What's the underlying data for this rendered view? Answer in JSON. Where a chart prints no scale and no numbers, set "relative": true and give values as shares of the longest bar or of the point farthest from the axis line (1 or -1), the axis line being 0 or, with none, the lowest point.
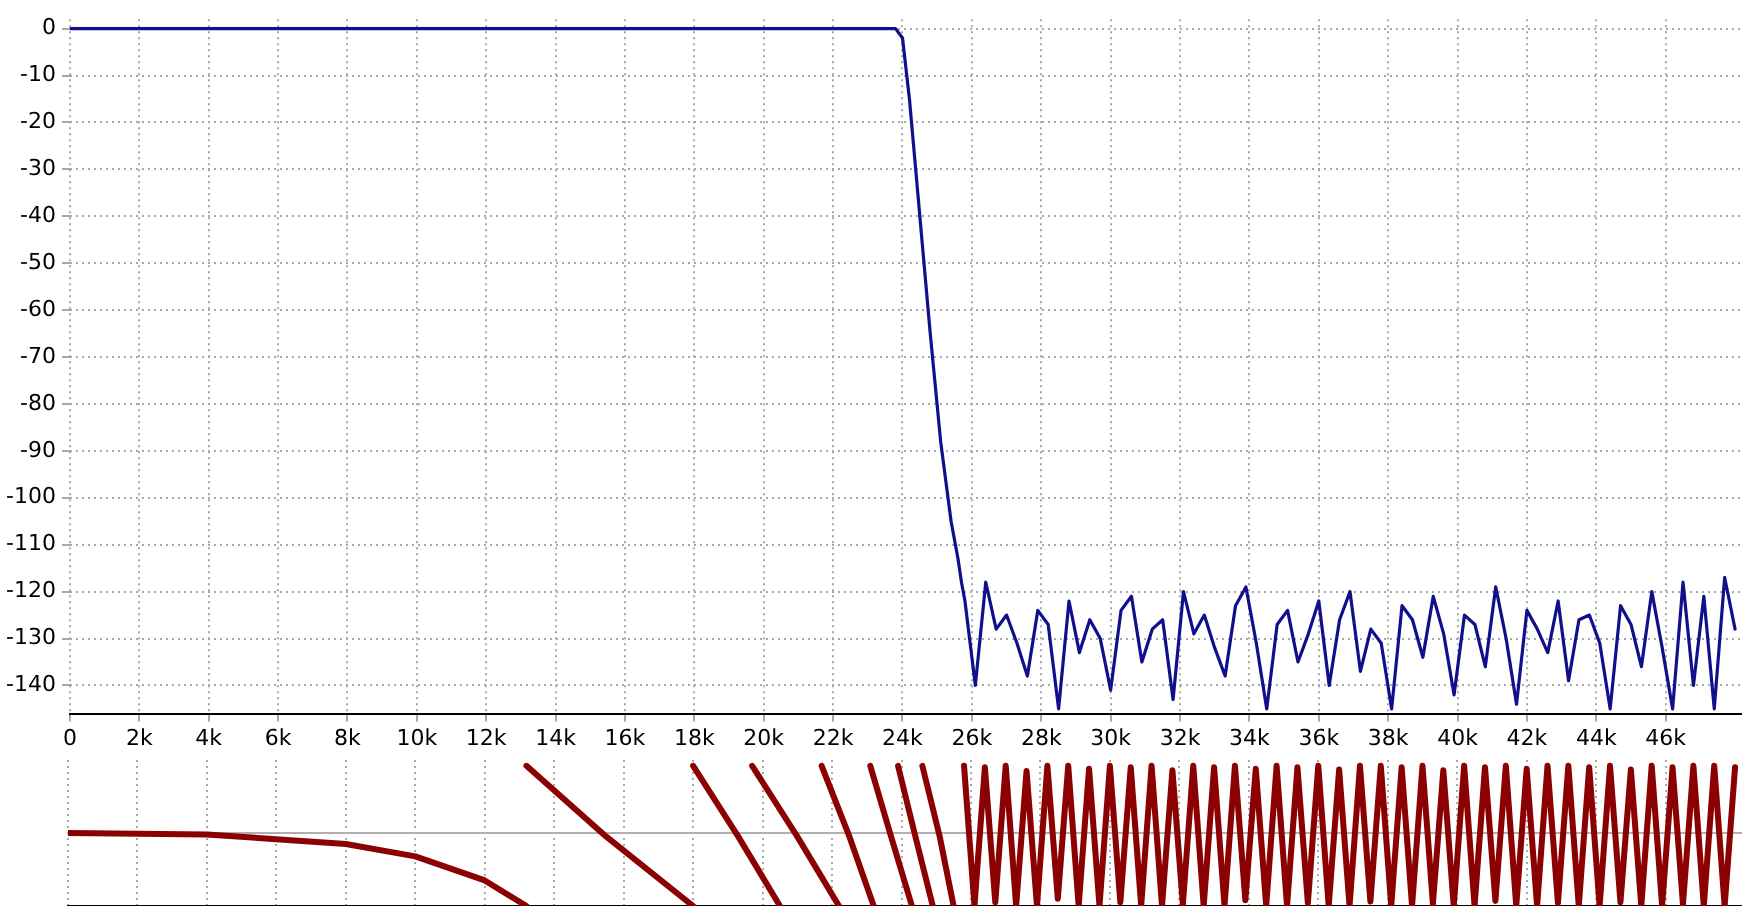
{
  "chart_data": [
    {
      "type": "line",
      "xlim": [
        0,
        48200
      ],
      "ylim": [
        -146,
        2
      ],
      "xticks": [
        {
          "value": 0,
          "label": "0"
        },
        {
          "value": 2000,
          "label": "2k"
        },
        {
          "value": 4000,
          "label": "4k"
        },
        {
          "value": 6000,
          "label": "6k"
        },
        {
          "value": 8000,
          "label": "8k"
        },
        {
          "value": 10000,
          "label": "10k"
        },
        {
          "value": 12000,
          "label": "12k"
        },
        {
          "value": 14000,
          "label": "14k"
        },
        {
          "value": 16000,
          "label": "16k"
        },
        {
          "value": 18000,
          "label": "18k"
        },
        {
          "value": 20000,
          "label": "20k"
        },
        {
          "value": 22000,
          "label": "22k"
        },
        {
          "value": 24000,
          "label": "24k"
        },
        {
          "value": 26000,
          "label": "26k"
        },
        {
          "value": 28000,
          "label": "28k"
        },
        {
          "value": 30000,
          "label": "30k"
        },
        {
          "value": 32000,
          "label": "32k"
        },
        {
          "value": 34000,
          "label": "34k"
        },
        {
          "value": 36000,
          "label": "36k"
        },
        {
          "value": 38000,
          "label": "38k"
        },
        {
          "value": 40000,
          "label": "40k"
        },
        {
          "value": 42000,
          "label": "42k"
        },
        {
          "value": 44000,
          "label": "44k"
        },
        {
          "value": 46000,
          "label": "46k"
        }
      ],
      "yticks": [
        0,
        -10,
        -20,
        -30,
        -40,
        -50,
        -60,
        -70,
        -80,
        -90,
        -100,
        -110,
        -120,
        -130,
        -140
      ],
      "grid": true,
      "legend": false,
      "marker": "none",
      "line_style": "solid",
      "series": [
        {
          "color": "#10108c",
          "x": [
            0,
            23800,
            24000,
            24200,
            24500,
            24800,
            25100,
            25400,
            25600,
            25700,
            25800,
            26100,
            26400,
            26700,
            27000,
            27300,
            27600,
            27900,
            28200,
            28500,
            28800,
            29100,
            29400,
            29700,
            30000,
            30300,
            30600,
            30900,
            31200,
            31500,
            31800,
            32100,
            32400,
            32700,
            33000,
            33300,
            33600,
            33900,
            34200,
            34500,
            34800,
            35100,
            35400,
            35700,
            36000,
            36300,
            36600,
            36900,
            37200,
            37500,
            37800,
            38100,
            38400,
            38700,
            39000,
            39300,
            39600,
            39900,
            40200,
            40500,
            40800,
            41100,
            41400,
            41700,
            42000,
            42300,
            42600,
            42900,
            43200,
            43500,
            43800,
            44100,
            44400,
            44700,
            45000,
            45300,
            45600,
            45900,
            46200,
            46500,
            46800,
            47100,
            47400,
            47700,
            48000
          ],
          "values": [
            0,
            0,
            -2,
            -15,
            -40,
            -65,
            -88,
            -105,
            -113,
            -118,
            -122,
            -140,
            -118,
            -128,
            -125,
            -131,
            -138,
            -124,
            -127,
            -145,
            -122,
            -133,
            -126,
            -130,
            -141,
            -124,
            -121,
            -135,
            -128,
            -126,
            -143,
            -120,
            -129,
            -125,
            -132,
            -138,
            -123,
            -119,
            -131,
            -145,
            -127,
            -124,
            -135,
            -129,
            -122,
            -140,
            -126,
            -120,
            -137,
            -128,
            -131,
            -145,
            -123,
            -126,
            -134,
            -121,
            -129,
            -142,
            -125,
            -127,
            -136,
            -119,
            -130,
            -144,
            -124,
            -128,
            -133,
            -122,
            -139,
            -126,
            -125,
            -131,
            -145,
            -123,
            -127,
            -136,
            -120,
            -132,
            -145,
            -118,
            -140,
            -121,
            -145,
            -117,
            -128
          ]
        }
      ]
    },
    {
      "type": "line",
      "relative": true,
      "xlim": [
        0,
        48200
      ],
      "tick_labels": false,
      "xticks": [
        {
          "value": 0,
          "label": null
        },
        {
          "value": 2000,
          "label": null
        },
        {
          "value": 4000,
          "label": null
        },
        {
          "value": 6000,
          "label": null
        },
        {
          "value": 8000,
          "label": null
        },
        {
          "value": 10000,
          "label": null
        },
        {
          "value": 12000,
          "label": null
        },
        {
          "value": 14000,
          "label": null
        },
        {
          "value": 16000,
          "label": null
        },
        {
          "value": 18000,
          "label": null
        },
        {
          "value": 20000,
          "label": null
        },
        {
          "value": 22000,
          "label": null
        },
        {
          "value": 24000,
          "label": null
        },
        {
          "value": 26000,
          "label": null
        },
        {
          "value": 28000,
          "label": null
        },
        {
          "value": 30000,
          "label": null
        },
        {
          "value": 32000,
          "label": null
        },
        {
          "value": 34000,
          "label": null
        },
        {
          "value": 36000,
          "label": null
        },
        {
          "value": 38000,
          "label": null
        },
        {
          "value": 40000,
          "label": null
        },
        {
          "value": 42000,
          "label": null
        },
        {
          "value": 44000,
          "label": null
        },
        {
          "value": 46000,
          "label": null
        }
      ],
      "grid": "x",
      "legend": false,
      "marker": "none",
      "line_style": "solid",
      "series": [
        {
          "color": "#8b0000",
          "x": [
            0,
            4000,
            8000,
            10000,
            12000,
            13200,
            null,
            13200,
            15500,
            18000,
            null,
            18000,
            19300,
            20500,
            null,
            19700,
            21000,
            22200,
            null,
            21700,
            22500,
            23200,
            null,
            23100,
            23700,
            24300,
            null,
            23900,
            24400,
            24900,
            null,
            24600,
            25100,
            25500,
            null,
            25800,
            26100,
            26400,
            26700,
            27000,
            27300,
            27600,
            27900,
            28200,
            28500,
            28800,
            29100,
            29400,
            29700,
            30000,
            30300,
            30600,
            30900,
            31200,
            31500,
            31800,
            32100,
            32400,
            32700,
            33000,
            33300,
            33600,
            33900,
            34200,
            34500,
            34800,
            35100,
            35400,
            35700,
            36000,
            36300,
            36600,
            36900,
            37200,
            37500,
            37800,
            38100,
            38400,
            38700,
            39000,
            39300,
            39600,
            39900,
            40200,
            40500,
            40800,
            41100,
            41400,
            41700,
            42000,
            42300,
            42600,
            42900,
            43200,
            43500,
            43800,
            44100,
            44400,
            44700,
            45000,
            45300,
            45600,
            45900,
            46200,
            46500,
            46800,
            47100,
            47400,
            47700,
            48000
          ],
          "values": [
            0,
            -0.02,
            -0.15,
            -0.32,
            -0.65,
            -1,
            null,
            0.92,
            -0.05,
            -1,
            null,
            0.92,
            -0.05,
            -1,
            null,
            0.92,
            -0.05,
            -1,
            null,
            0.92,
            -0.05,
            -1,
            null,
            0.92,
            -0.05,
            -1,
            null,
            0.92,
            -0.05,
            -1,
            null,
            0.92,
            -0.05,
            -1,
            null,
            0.92,
            -1,
            0.9,
            -0.95,
            0.92,
            -1,
            0.85,
            -1,
            0.92,
            -0.9,
            0.92,
            -1,
            0.88,
            -1,
            0.92,
            -0.95,
            0.9,
            -1,
            0.92,
            -1,
            0.86,
            -0.98,
            0.92,
            -1,
            0.9,
            -1,
            0.92,
            -0.92,
            0.88,
            -1,
            0.92,
            -1,
            0.9,
            -0.96,
            0.92,
            -1,
            0.87,
            -1,
            0.92,
            -0.94,
            0.92,
            -1,
            0.9,
            -1,
            0.92,
            -0.97,
            0.86,
            -1,
            0.92,
            -1,
            0.9,
            -0.93,
            0.92,
            -1,
            0.88,
            -1,
            0.92,
            -0.96,
            0.92,
            -1,
            0.9,
            -1,
            0.92,
            -0.95,
            0.87,
            -1,
            0.92,
            -1,
            0.9,
            -0.98,
            0.92,
            -1,
            0.92,
            -1,
            0.9
          ]
        }
      ]
    }
  ]
}
